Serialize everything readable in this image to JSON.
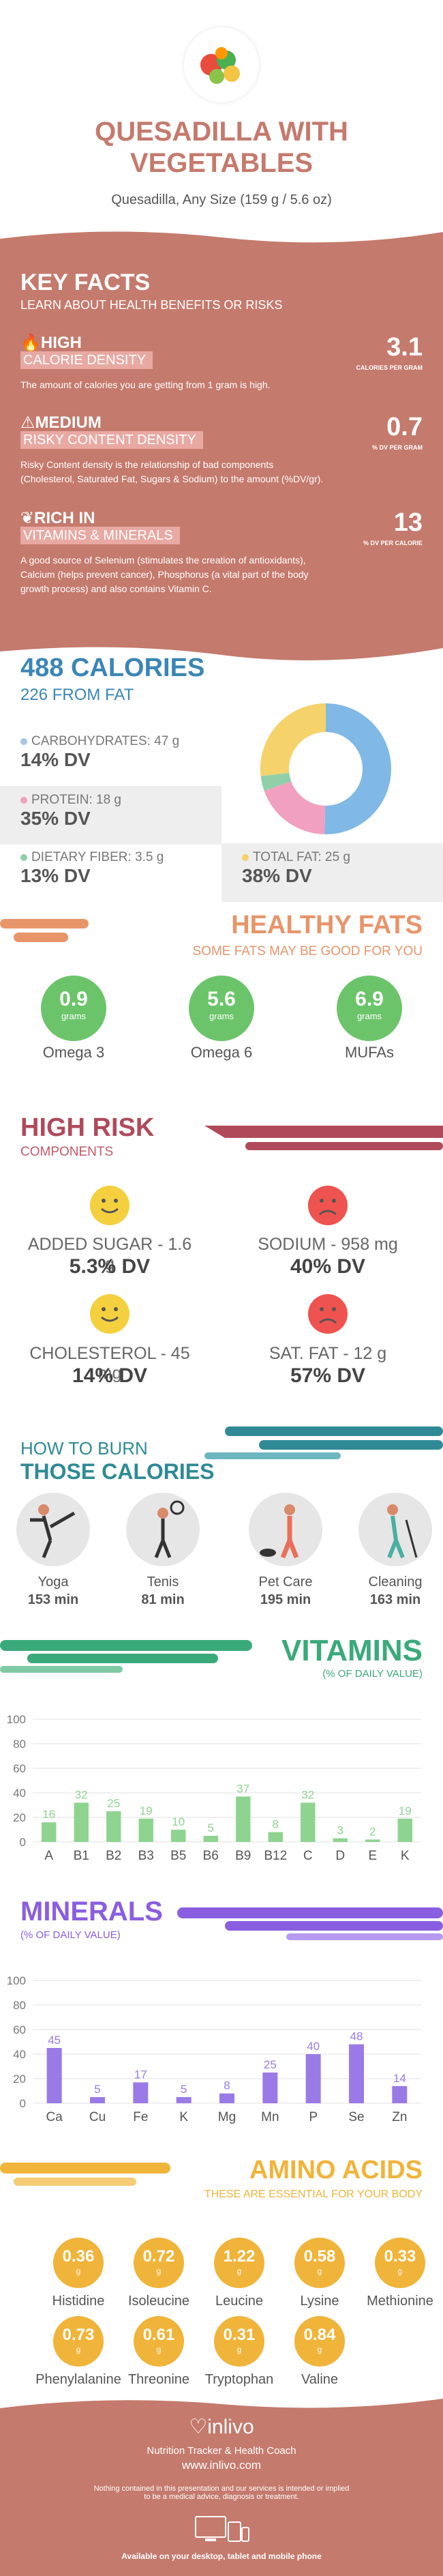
{
  "colors": {
    "accent": "#c47a6d",
    "key_bg": "#c47a6d",
    "blue": "#3a86b5",
    "orange": "#e8956a",
    "green": "#6cc46a",
    "maroon": "#b04a5a",
    "teal": "#2f8a96",
    "vit": "#3aaa7a",
    "min": "#8a5ee0",
    "amino": "#f0b43a"
  },
  "hero": {
    "image_icon": "vegetables-icon",
    "title_line1": "QUESADILLA WITH",
    "title_line2": "VEGETABLES",
    "subtitle": "Quesadilla, Any Size (159 g / 5.6 oz)"
  },
  "key_facts": {
    "title": "KEY FACTS",
    "subtitle": "LEARN ABOUT HEALTH BENEFITS OR RISKS",
    "facts": [
      {
        "icon": "flame-icon",
        "level": "HIGH",
        "tag": "CALORIE DENSITY",
        "value": "3.1",
        "unit": "CALORIES PER GRAM",
        "desc": "The amount of calories you are getting from 1 gram is high."
      },
      {
        "icon": "warning-icon",
        "level": "MEDIUM",
        "tag": "RISKY CONTENT DENSITY",
        "value": "0.7",
        "unit": "% DV PER GRAM",
        "desc1": "Risky Content density is the relationship of bad components",
        "desc2": "(Cholesterol, Saturated Fat, Sugars & Sodium) to the amount (%DV/gr)."
      },
      {
        "icon": "leaf-icon",
        "level": "RICH  IN",
        "tag": "VITAMINS & MINERALS",
        "value": "13",
        "unit": "% DV PER CALORIE",
        "desc1": "A good source of Selenium (stimulates the creation of antioxidants),",
        "desc2": "Calcium (helps prevent cancer), Phosphorus (a vital part of the body",
        "desc3": "growth process) and also contains Vitamin C."
      }
    ]
  },
  "calories": {
    "title": "488 CALORIES",
    "fat": "226 FROM FAT"
  },
  "macros": [
    {
      "label": "CARBOHYDRATES: 47 g",
      "dv": "14% DV",
      "color": "#a9c6e6"
    },
    {
      "label": "PROTEIN: 18 g",
      "dv": "35% DV",
      "color": "#f2a0c0"
    },
    {
      "label": "DIETARY FIBER: 3.5 g",
      "dv": "13% DV",
      "color": "#8fd0a8"
    },
    {
      "label": "TOTAL FAT: 25 g",
      "dv": "38% DV",
      "color": "#f6d26a"
    }
  ],
  "chart_data": [
    {
      "type": "pie",
      "categories": [
        "CARBOHYDRATES",
        "PROTEIN",
        "DIETARY FIBER",
        "TOTAL FAT"
      ],
      "values": [
        47,
        18,
        3.5,
        25
      ],
      "colors": [
        "#80b8e6",
        "#f2a0c0",
        "#8fd0a8",
        "#f6d26a"
      ]
    },
    {
      "type": "bar",
      "title": "VITAMINS",
      "subtitle": "(% OF DAILY VALUE)",
      "categories": [
        "A",
        "B1",
        "B2",
        "B3",
        "B5",
        "B6",
        "B9",
        "B12",
        "C",
        "D",
        "E",
        "K"
      ],
      "values": [
        16,
        32,
        25,
        19,
        10,
        5,
        37,
        8,
        32,
        3,
        2,
        19
      ],
      "ylim": [
        0,
        100
      ],
      "yticks": [
        0,
        20,
        40,
        60,
        80,
        100
      ],
      "color": "#8ed490"
    },
    {
      "type": "bar",
      "title": "MINERALS",
      "subtitle": "(% OF DAILY VALUE)",
      "categories": [
        "Ca",
        "Cu",
        "Fe",
        "K",
        "Mg",
        "Mn",
        "P",
        "Se",
        "Zn"
      ],
      "values": [
        45,
        5,
        17,
        5,
        8,
        25,
        40,
        48,
        14
      ],
      "ylim": [
        0,
        100
      ],
      "yticks": [
        0,
        20,
        40,
        60,
        80,
        100
      ],
      "color": "#9a7ae6"
    }
  ],
  "healthy_fats": {
    "title": "HEALTHY FATS",
    "subtitle": "SOME FATS MAY BE GOOD FOR YOU",
    "items": [
      {
        "value": "0.9",
        "unit": "grams",
        "label": "Omega 3"
      },
      {
        "value": "5.6",
        "unit": "grams",
        "label": "Omega 6"
      },
      {
        "value": "6.9",
        "unit": "grams",
        "label": "MUFAs"
      }
    ]
  },
  "high_risk": {
    "title": "HIGH RISK",
    "subtitle": "COMPONENTS",
    "items": [
      {
        "label": "ADDED SUGAR - 1.6 g",
        "dv": "5.3% DV",
        "face": "happy-face-icon"
      },
      {
        "label": "SODIUM - 958 mg",
        "dv": "40% DV",
        "face": "sad-face-icon"
      },
      {
        "label": "CHOLESTEROL - 45 mg",
        "dv": "14% DV",
        "face": "happy-face-icon"
      },
      {
        "label": "SAT. FAT - 12 g",
        "dv": "57% DV",
        "face": "sad-face-icon"
      }
    ]
  },
  "burn": {
    "title1": "HOW TO BURN",
    "title2": "THOSE CALORIES",
    "items": [
      {
        "label": "Yoga",
        "min": "153 min",
        "icon": "yoga-icon"
      },
      {
        "label": "Tenis",
        "min": "81 min",
        "icon": "tennis-icon"
      },
      {
        "label": "Pet Care",
        "min": "195 min",
        "icon": "pet-care-icon"
      },
      {
        "label": "Cleaning",
        "min": "163 min",
        "icon": "cleaning-icon"
      }
    ]
  },
  "amino": {
    "title": "AMINO ACIDS",
    "subtitle": "THESE ARE ESSENTIAL FOR YOUR BODY",
    "items": [
      {
        "v": "0.36",
        "u": "g",
        "l": "Histidine"
      },
      {
        "v": "0.72",
        "u": "g",
        "l": "Isoleucine"
      },
      {
        "v": "1.22",
        "u": "g",
        "l": "Leucine"
      },
      {
        "v": "0.58",
        "u": "g",
        "l": "Lysine"
      },
      {
        "v": "0.33",
        "u": "g",
        "l": "Methionine"
      },
      {
        "v": "0.73",
        "u": "g",
        "l": "Phenylalanine"
      },
      {
        "v": "0.61",
        "u": "g",
        "l": "Threonine"
      },
      {
        "v": "0.31",
        "u": "g",
        "l": "Tryptophan"
      },
      {
        "v": "0.84",
        "u": "g",
        "l": "Valine"
      }
    ]
  },
  "footer": {
    "brand": "inlivo",
    "tagline": "Nutrition Tracker & Health Coach",
    "url": "www.inlivo.com",
    "disclaimer1": "Nothing contained in this presentation and our services is intended or implied",
    "disclaimer2": "to be a medical advice, diagnosis or treatment.",
    "devices": "Available on your desktop, tablet and mobile phone"
  }
}
